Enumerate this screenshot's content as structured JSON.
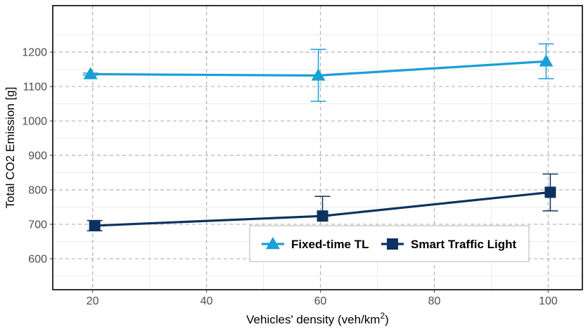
{
  "chart_data": {
    "type": "line",
    "title": "",
    "xlabel": "Vehicles' density (veh/km",
    "xlabel_sup": "2",
    "xlabel_suffix": ")",
    "ylabel": "Total CO2 Emission [g]",
    "xlim": [
      13,
      106
    ],
    "ylim": [
      510,
      1335
    ],
    "x_ticks": [
      20,
      40,
      60,
      80,
      100
    ],
    "y_ticks": [
      600,
      700,
      800,
      900,
      1000,
      1100,
      1200
    ],
    "grid": true,
    "legend_position": "bottom-right",
    "series": [
      {
        "name": "Fixed-time TL",
        "color": "#1a9fd6",
        "marker": "triangle",
        "x": [
          20,
          60,
          100
        ],
        "y": [
          1136,
          1132,
          1173
        ],
        "error_low": [
          1133,
          1057,
          1123
        ],
        "error_high": [
          1139,
          1208,
          1224
        ]
      },
      {
        "name": "Smart Traffic Light",
        "color": "#0b3260",
        "marker": "square",
        "x": [
          20,
          60,
          100
        ],
        "y": [
          696,
          724,
          793
        ],
        "error_low": [
          681,
          724,
          739
        ],
        "error_high": [
          711,
          781,
          846
        ]
      }
    ]
  }
}
